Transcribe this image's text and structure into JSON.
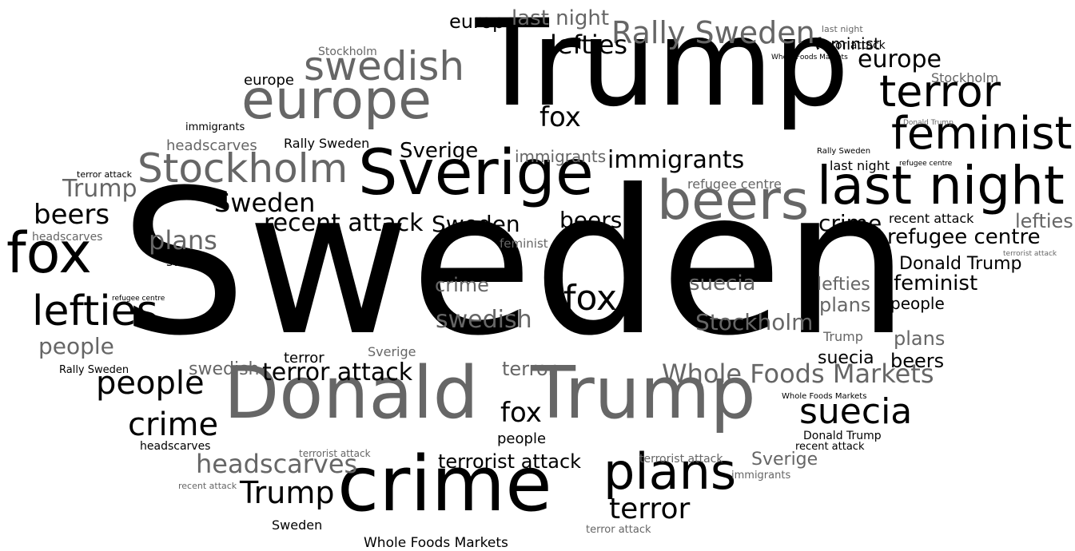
{
  "colors": {
    "black": "#000000",
    "gray": "#666666",
    "light_gray": "#8c8c8c"
  },
  "words": [
    {
      "text": "Sweden",
      "tone": "black"
    },
    {
      "text": "Trump",
      "tone": "black"
    },
    {
      "text": "Sverige",
      "tone": "black"
    },
    {
      "text": "crime",
      "tone": "black"
    },
    {
      "text": "Donald",
      "tone": "gray"
    },
    {
      "text": "Trump",
      "tone": "gray"
    },
    {
      "text": "europe",
      "tone": "gray"
    },
    {
      "text": "last night",
      "tone": "black"
    },
    {
      "text": "beers",
      "tone": "gray"
    },
    {
      "text": "fox",
      "tone": "black"
    },
    {
      "text": "plans",
      "tone": "black"
    },
    {
      "text": "feminist",
      "tone": "black"
    },
    {
      "text": "terror",
      "tone": "black"
    },
    {
      "text": "Stockholm",
      "tone": "gray"
    },
    {
      "text": "swedish",
      "tone": "gray"
    },
    {
      "text": "lefties",
      "tone": "black"
    },
    {
      "text": "Rally Sweden",
      "tone": "gray"
    },
    {
      "text": "suecia",
      "tone": "black"
    },
    {
      "text": "fox",
      "tone": "black"
    },
    {
      "text": "people",
      "tone": "black"
    },
    {
      "text": "Whole Foods Markets",
      "tone": "gray"
    },
    {
      "text": "headscarves",
      "tone": "gray"
    },
    {
      "text": "crime",
      "tone": "black"
    },
    {
      "text": "terror attack",
      "tone": "black"
    },
    {
      "text": "recent attack",
      "tone": "black"
    },
    {
      "text": "Sweden",
      "tone": "black"
    },
    {
      "text": "immigrants",
      "tone": "black"
    },
    {
      "text": "Trump",
      "tone": "black"
    },
    {
      "text": "terror",
      "tone": "black"
    },
    {
      "text": "fox",
      "tone": "black"
    },
    {
      "text": "fox",
      "tone": "black"
    },
    {
      "text": "terrorist attack",
      "tone": "black"
    },
    {
      "text": "beers",
      "tone": "black"
    },
    {
      "text": "lefties",
      "tone": "black"
    },
    {
      "text": "europe",
      "tone": "black"
    },
    {
      "text": "europe",
      "tone": "black"
    },
    {
      "text": "last night",
      "tone": "gray"
    },
    {
      "text": "Trump",
      "tone": "gray"
    },
    {
      "text": "plans",
      "tone": "gray"
    },
    {
      "text": "people",
      "tone": "gray"
    },
    {
      "text": "refugee centre",
      "tone": "black"
    },
    {
      "text": "Sweden",
      "tone": "black"
    },
    {
      "text": "crime",
      "tone": "black"
    },
    {
      "text": "beers",
      "tone": "black"
    },
    {
      "text": "Sverige",
      "tone": "black"
    },
    {
      "text": "swedish",
      "tone": "gray"
    },
    {
      "text": "Stockholm",
      "tone": "gray"
    },
    {
      "text": "suecia",
      "tone": "gray"
    },
    {
      "text": "crime",
      "tone": "gray"
    },
    {
      "text": "terror",
      "tone": "gray"
    },
    {
      "text": "swedish",
      "tone": "gray"
    },
    {
      "text": "Donald Trump",
      "tone": "black"
    },
    {
      "text": "feminist",
      "tone": "black"
    },
    {
      "text": "people",
      "tone": "black"
    },
    {
      "text": "lefties",
      "tone": "gray"
    },
    {
      "text": "plans",
      "tone": "gray"
    },
    {
      "text": "plans",
      "tone": "gray"
    },
    {
      "text": "suecia",
      "tone": "black"
    },
    {
      "text": "beers",
      "tone": "black"
    },
    {
      "text": "Sverige",
      "tone": "gray"
    },
    {
      "text": "lefties",
      "tone": "gray"
    },
    {
      "text": "feminist",
      "tone": "black"
    },
    {
      "text": "europe",
      "tone": "black"
    },
    {
      "text": "immigrants",
      "tone": "gray"
    },
    {
      "text": "headscarves",
      "tone": "gray"
    },
    {
      "text": "Rally Sweden",
      "tone": "black"
    },
    {
      "text": "Stockholm",
      "tone": "gray"
    },
    {
      "text": "Stockholm",
      "tone": "gray"
    },
    {
      "text": "terror attack",
      "tone": "black"
    },
    {
      "text": "Trump",
      "tone": "gray"
    },
    {
      "text": "refugee centre",
      "tone": "gray"
    },
    {
      "text": "Sweden",
      "tone": "black"
    },
    {
      "text": "people",
      "tone": "black"
    },
    {
      "text": "swedish",
      "tone": "black"
    },
    {
      "text": "Sverige",
      "tone": "gray"
    },
    {
      "text": "terror",
      "tone": "black"
    },
    {
      "text": "Rally Sweden",
      "tone": "black"
    },
    {
      "text": "Whole Foods Markets",
      "tone": "black"
    },
    {
      "text": "recent attack",
      "tone": "black"
    },
    {
      "text": "Donald Trump",
      "tone": "black"
    },
    {
      "text": "headscarves",
      "tone": "black"
    },
    {
      "text": "immigrants",
      "tone": "black"
    },
    {
      "text": "terror attack",
      "tone": "black"
    },
    {
      "text": "terror attack",
      "tone": "gray"
    },
    {
      "text": "recent attack",
      "tone": "gray"
    },
    {
      "text": "terrorist attack",
      "tone": "gray"
    },
    {
      "text": "terrorist attack",
      "tone": "gray"
    },
    {
      "text": "immigrants",
      "tone": "gray"
    },
    {
      "text": "Whole Foods Markets",
      "tone": "black"
    },
    {
      "text": "feminist",
      "tone": "gray"
    },
    {
      "text": "headscarves",
      "tone": "gray"
    },
    {
      "text": "last night",
      "tone": "black"
    },
    {
      "text": "last night",
      "tone": "gray"
    },
    {
      "text": "Donald Trump",
      "tone": "gray"
    },
    {
      "text": "Rally Sweden",
      "tone": "black"
    },
    {
      "text": "refugee centre",
      "tone": "black"
    },
    {
      "text": "refugee centre",
      "tone": "black"
    },
    {
      "text": "terrorist attack",
      "tone": "gray"
    },
    {
      "text": "Whole Foods Markets",
      "tone": "black"
    },
    {
      "text": "recent attack",
      "tone": "black"
    }
  ]
}
